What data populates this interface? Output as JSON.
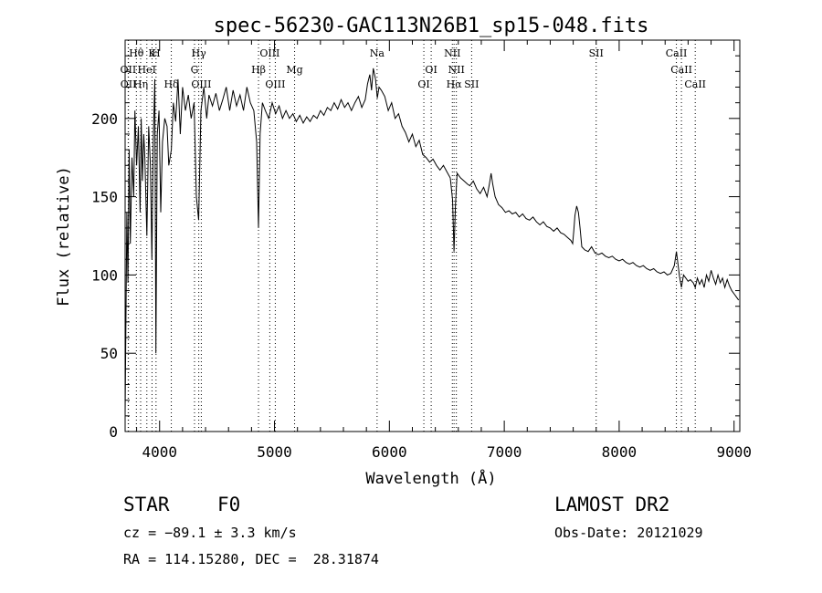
{
  "chart_data": {
    "type": "line",
    "title": "spec-56230-GAC113N26B1_sp15-048.fits",
    "xlabel": "Wavelength (Å)",
    "ylabel": "Flux (relative)",
    "xlim": [
      3700,
      9050
    ],
    "ylim": [
      0,
      250
    ],
    "x_ticks": [
      4000,
      5000,
      6000,
      7000,
      8000,
      9000
    ],
    "y_ticks": [
      0,
      50,
      100,
      150,
      200
    ],
    "grid": false,
    "series": [
      {
        "points": [
          [
            3700,
            10
          ],
          [
            3715,
            140
          ],
          [
            3725,
            95
          ],
          [
            3735,
            180
          ],
          [
            3745,
            120
          ],
          [
            3760,
            175
          ],
          [
            3775,
            150
          ],
          [
            3785,
            205
          ],
          [
            3800,
            170
          ],
          [
            3815,
            195
          ],
          [
            3830,
            140
          ],
          [
            3840,
            200
          ],
          [
            3850,
            160
          ],
          [
            3862,
            190
          ],
          [
            3872,
            175
          ],
          [
            3889,
            125
          ],
          [
            3905,
            195
          ],
          [
            3920,
            170
          ],
          [
            3933,
            110
          ],
          [
            3945,
            185
          ],
          [
            3958,
            225
          ],
          [
            3968,
            50
          ],
          [
            3980,
            190
          ],
          [
            3995,
            205
          ],
          [
            4010,
            140
          ],
          [
            4025,
            185
          ],
          [
            4045,
            200
          ],
          [
            4065,
            195
          ],
          [
            4080,
            170
          ],
          [
            4102,
            180
          ],
          [
            4120,
            210
          ],
          [
            4140,
            198
          ],
          [
            4160,
            225
          ],
          [
            4180,
            190
          ],
          [
            4200,
            220
          ],
          [
            4225,
            205
          ],
          [
            4250,
            215
          ],
          [
            4275,
            200
          ],
          [
            4300,
            210
          ],
          [
            4320,
            150
          ],
          [
            4340,
            135
          ],
          [
            4360,
            205
          ],
          [
            4385,
            220
          ],
          [
            4410,
            200
          ],
          [
            4430,
            215
          ],
          [
            4460,
            208
          ],
          [
            4490,
            216
          ],
          [
            4520,
            205
          ],
          [
            4550,
            212
          ],
          [
            4580,
            220
          ],
          [
            4610,
            205
          ],
          [
            4640,
            218
          ],
          [
            4670,
            208
          ],
          [
            4700,
            215
          ],
          [
            4730,
            205
          ],
          [
            4760,
            220
          ],
          [
            4790,
            210
          ],
          [
            4820,
            205
          ],
          [
            4845,
            185
          ],
          [
            4861,
            130
          ],
          [
            4875,
            190
          ],
          [
            4895,
            210
          ],
          [
            4920,
            205
          ],
          [
            4950,
            200
          ],
          [
            4980,
            210
          ],
          [
            5010,
            203
          ],
          [
            5040,
            208
          ],
          [
            5070,
            200
          ],
          [
            5100,
            205
          ],
          [
            5130,
            200
          ],
          [
            5160,
            203
          ],
          [
            5190,
            198
          ],
          [
            5220,
            202
          ],
          [
            5250,
            197
          ],
          [
            5280,
            201
          ],
          [
            5310,
            198
          ],
          [
            5340,
            202
          ],
          [
            5370,
            200
          ],
          [
            5400,
            205
          ],
          [
            5430,
            202
          ],
          [
            5460,
            207
          ],
          [
            5490,
            205
          ],
          [
            5520,
            210
          ],
          [
            5550,
            206
          ],
          [
            5580,
            212
          ],
          [
            5610,
            207
          ],
          [
            5640,
            210
          ],
          [
            5670,
            205
          ],
          [
            5700,
            210
          ],
          [
            5730,
            214
          ],
          [
            5760,
            207
          ],
          [
            5790,
            212
          ],
          [
            5810,
            222
          ],
          [
            5830,
            228
          ],
          [
            5845,
            218
          ],
          [
            5860,
            232
          ],
          [
            5880,
            225
          ],
          [
            5895,
            213
          ],
          [
            5910,
            220
          ],
          [
            5930,
            218
          ],
          [
            5960,
            214
          ],
          [
            5990,
            205
          ],
          [
            6020,
            210
          ],
          [
            6050,
            200
          ],
          [
            6080,
            203
          ],
          [
            6110,
            195
          ],
          [
            6140,
            191
          ],
          [
            6170,
            185
          ],
          [
            6200,
            190
          ],
          [
            6230,
            182
          ],
          [
            6260,
            186
          ],
          [
            6290,
            177
          ],
          [
            6320,
            175
          ],
          [
            6350,
            172
          ],
          [
            6380,
            174
          ],
          [
            6410,
            170
          ],
          [
            6440,
            167
          ],
          [
            6470,
            170
          ],
          [
            6500,
            166
          ],
          [
            6530,
            162
          ],
          [
            6550,
            148
          ],
          [
            6563,
            115
          ],
          [
            6575,
            145
          ],
          [
            6590,
            165
          ],
          [
            6620,
            162
          ],
          [
            6650,
            160
          ],
          [
            6680,
            158
          ],
          [
            6700,
            157
          ],
          [
            6730,
            160
          ],
          [
            6760,
            155
          ],
          [
            6790,
            152
          ],
          [
            6820,
            156
          ],
          [
            6850,
            150
          ],
          [
            6870,
            158
          ],
          [
            6885,
            165
          ],
          [
            6900,
            158
          ],
          [
            6920,
            150
          ],
          [
            6950,
            145
          ],
          [
            6980,
            143
          ],
          [
            7010,
            140
          ],
          [
            7040,
            141
          ],
          [
            7070,
            139
          ],
          [
            7100,
            140
          ],
          [
            7130,
            137
          ],
          [
            7160,
            139
          ],
          [
            7190,
            136
          ],
          [
            7220,
            135
          ],
          [
            7250,
            137
          ],
          [
            7280,
            134
          ],
          [
            7310,
            132
          ],
          [
            7340,
            134
          ],
          [
            7370,
            131
          ],
          [
            7400,
            130
          ],
          [
            7430,
            128
          ],
          [
            7460,
            130
          ],
          [
            7490,
            127
          ],
          [
            7520,
            126
          ],
          [
            7550,
            124
          ],
          [
            7580,
            122
          ],
          [
            7595,
            120
          ],
          [
            7605,
            128
          ],
          [
            7615,
            138
          ],
          [
            7630,
            144
          ],
          [
            7645,
            140
          ],
          [
            7660,
            130
          ],
          [
            7675,
            118
          ],
          [
            7700,
            116
          ],
          [
            7730,
            115
          ],
          [
            7760,
            118
          ],
          [
            7790,
            114
          ],
          [
            7820,
            113
          ],
          [
            7850,
            114
          ],
          [
            7880,
            112
          ],
          [
            7910,
            111
          ],
          [
            7940,
            112
          ],
          [
            7970,
            110
          ],
          [
            8000,
            109
          ],
          [
            8030,
            110
          ],
          [
            8060,
            108
          ],
          [
            8090,
            107
          ],
          [
            8120,
            108
          ],
          [
            8150,
            106
          ],
          [
            8180,
            105
          ],
          [
            8210,
            106
          ],
          [
            8240,
            104
          ],
          [
            8270,
            103
          ],
          [
            8300,
            104
          ],
          [
            8330,
            102
          ],
          [
            8360,
            101
          ],
          [
            8390,
            102
          ],
          [
            8420,
            100
          ],
          [
            8450,
            101
          ],
          [
            8480,
            106
          ],
          [
            8498,
            115
          ],
          [
            8510,
            108
          ],
          [
            8525,
            99
          ],
          [
            8542,
            92
          ],
          [
            8560,
            100
          ],
          [
            8580,
            98
          ],
          [
            8600,
            96
          ],
          [
            8620,
            97
          ],
          [
            8645,
            95
          ],
          [
            8662,
            92
          ],
          [
            8680,
            98
          ],
          [
            8700,
            94
          ],
          [
            8720,
            97
          ],
          [
            8740,
            92
          ],
          [
            8760,
            100
          ],
          [
            8780,
            96
          ],
          [
            8800,
            103
          ],
          [
            8820,
            98
          ],
          [
            8840,
            94
          ],
          [
            8860,
            100
          ],
          [
            8880,
            95
          ],
          [
            8900,
            98
          ],
          [
            8920,
            92
          ],
          [
            8940,
            97
          ],
          [
            8960,
            93
          ],
          [
            8980,
            90
          ],
          [
            9000,
            88
          ],
          [
            9020,
            86
          ],
          [
            9040,
            84
          ]
        ]
      }
    ],
    "lines": [
      {
        "label": "Hθ",
        "x": 3798,
        "row": 0
      },
      {
        "label": "OII",
        "x": 3727,
        "row": 1
      },
      {
        "label": "OII",
        "x": 3729,
        "row": 2
      },
      {
        "label": "Hη",
        "x": 3835,
        "row": 2
      },
      {
        "label": "HeI",
        "x": 3889,
        "row": 1
      },
      {
        "label": "K",
        "x": 3934,
        "row": 0
      },
      {
        "label": "H",
        "x": 3969,
        "row": 0
      },
      {
        "label": "Hδ",
        "x": 4102,
        "row": 2
      },
      {
        "label": "Hγ",
        "x": 4341,
        "row": 0
      },
      {
        "label": "G",
        "x": 4304,
        "row": 1
      },
      {
        "label": "OIII",
        "x": 4363,
        "row": 2
      },
      {
        "label": "Hβ",
        "x": 4861,
        "row": 1
      },
      {
        "label": "OIII",
        "x": 4959,
        "row": 0
      },
      {
        "label": "OIII",
        "x": 5007,
        "row": 2
      },
      {
        "label": "Mg",
        "x": 5175,
        "row": 1
      },
      {
        "label": "Na",
        "x": 5893,
        "row": 0
      },
      {
        "label": "OI",
        "x": 6300,
        "row": 2
      },
      {
        "label": "OI",
        "x": 6364,
        "row": 1
      },
      {
        "label": "NII",
        "x": 6548,
        "row": 0
      },
      {
        "label": "Hα",
        "x": 6563,
        "row": 2
      },
      {
        "label": "NII",
        "x": 6583,
        "row": 1
      },
      {
        "label": "SII",
        "x": 6716,
        "row": 2
      },
      {
        "label": "SII",
        "x": 7800,
        "row": 0
      },
      {
        "label": "CaII",
        "x": 8498,
        "row": 0
      },
      {
        "label": "CaII",
        "x": 8542,
        "row": 1
      },
      {
        "label": "CaII",
        "x": 8662,
        "row": 2
      }
    ]
  },
  "info": {
    "object_class": "STAR",
    "subclass": "F0",
    "survey": "LAMOST DR2",
    "cz": "cz = −89.1 ± 3.3 km/s",
    "obs_date": "Obs-Date: 20121029",
    "coords": "RA = 114.15280, DEC =  28.31874"
  }
}
